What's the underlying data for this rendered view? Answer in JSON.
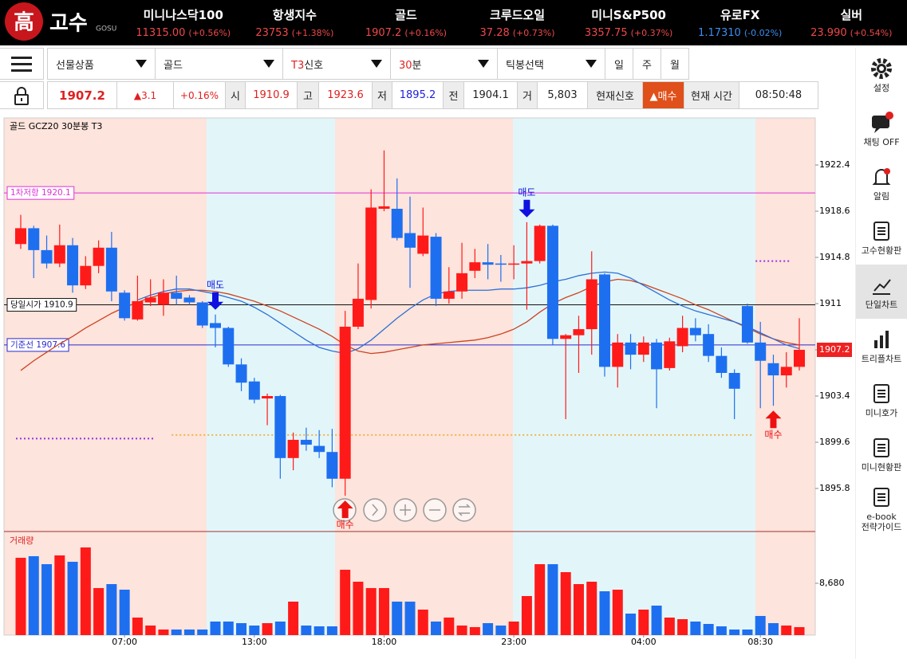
{
  "header": {
    "logo_mark": "高",
    "logo_text": "고수",
    "logo_sub": "GOSU",
    "tickers": [
      {
        "name": "미니나스닥100",
        "price": "11315.00",
        "change": "(+0.56%)",
        "color": "#f04848"
      },
      {
        "name": "항생지수",
        "price": "23753",
        "change": "(+1.38%)",
        "color": "#f04848"
      },
      {
        "name": "골드",
        "price": "1907.2",
        "change": "(+0.16%)",
        "color": "#f04848"
      },
      {
        "name": "크루드오일",
        "price": "37.28",
        "change": "(+0.73%)",
        "color": "#f04848"
      },
      {
        "name": "미니S&P500",
        "price": "3357.75",
        "change": "(+0.37%)",
        "color": "#f04848"
      },
      {
        "name": "유로FX",
        "price": "1.17310",
        "change": "(-0.02%)",
        "color": "#3c8ef0"
      },
      {
        "name": "실버",
        "price": "23.990",
        "change": "(+0.54%)",
        "color": "#f04848"
      }
    ]
  },
  "toolbar": {
    "dropdowns": [
      {
        "highlight": "",
        "text": "선물상품"
      },
      {
        "highlight": "",
        "text": "골드"
      },
      {
        "highlight": "T3",
        "text": "신호"
      },
      {
        "highlight": "30",
        "text": "분"
      },
      {
        "highlight": "",
        "text": "틱봉선택"
      }
    ],
    "periods": [
      "일",
      "주",
      "월"
    ]
  },
  "quote": {
    "price": "1907.2",
    "change": "▲3.1",
    "rate": "+0.16%",
    "open_label": "시",
    "open": "1910.9",
    "high_label": "고",
    "high": "1923.6",
    "low_label": "저",
    "low": "1895.2",
    "prev_label": "전",
    "prev": "1904.1",
    "vol_label": "거",
    "volume": "5,803",
    "signal_label": "현재신호",
    "signal": "▲매수",
    "time_label": "현재 시간",
    "time": "08:50:48"
  },
  "sidebar": {
    "items": [
      {
        "label": "설정"
      },
      {
        "label": "채팅 OFF"
      },
      {
        "label": "알림"
      },
      {
        "label": "고수현황판"
      },
      {
        "label": "단일차트"
      },
      {
        "label": "트리플차트"
      },
      {
        "label": "미니호가"
      },
      {
        "label": "미니현황판"
      },
      {
        "label": "e-book\n전략가이드"
      }
    ]
  },
  "chart_data": {
    "type": "candlestick",
    "title": "골드  GCZ20  30분봉  T3",
    "up_color": "#ff1a1a",
    "down_color": "#1e6ff0",
    "categories": [
      null,
      null,
      null,
      null,
      null,
      null,
      null,
      null,
      "07:00",
      null,
      null,
      null,
      null,
      null,
      null,
      null,
      null,
      null,
      "13:00",
      null,
      null,
      null,
      null,
      null,
      null,
      null,
      null,
      null,
      "18:00",
      null,
      null,
      null,
      null,
      null,
      null,
      null,
      null,
      null,
      "23:00",
      null,
      null,
      null,
      null,
      null,
      null,
      null,
      null,
      null,
      "04:00",
      null,
      null,
      null,
      null,
      null,
      null,
      null,
      null,
      "08:30",
      null,
      null,
      null
    ],
    "open": [
      1915.9,
      1917.2,
      1915.4,
      1914.3,
      1915.8,
      1912.5,
      1914.1,
      1915.6,
      1911.9,
      1909.7,
      1911.1,
      1910.9,
      1911.9,
      1911.5,
      1911.1,
      1909.4,
      1909.0,
      1906.0,
      1904.6,
      1903.2,
      1903.4,
      1898.3,
      1899.8,
      1899.3,
      1898.8,
      1896.6,
      1909.1,
      1911.3,
      1918.8,
      1918.8,
      1916.8,
      1915.1,
      1916.5,
      1911.4,
      1912.0,
      1913.7,
      1914.4,
      1914.3,
      1914.2,
      1914.3,
      1914.5,
      1917.4,
      1908.1,
      1908.4,
      1908.9,
      1913.4,
      1905.8,
      1907.8,
      1906.8,
      1907.8,
      1905.7,
      1907.5,
      1909.0,
      1908.5,
      1906.7,
      1905.3,
      1910.8,
      1907.8,
      1906.1,
      1905.1,
      1905.8
    ],
    "high": [
      1918.3,
      1917.4,
      1916.6,
      1917.5,
      1916.4,
      1914.9,
      1916.2,
      1916.9,
      1912.1,
      1913.3,
      1913.0,
      1913.0,
      1913.3,
      1911.7,
      1911.2,
      1910.1,
      1909.1,
      1906.5,
      1904.9,
      1903.6,
      1903.5,
      1900.4,
      1900.8,
      1900.6,
      1900.7,
      1910.4,
      1914.3,
      1920.4,
      1923.6,
      1921.3,
      1919.8,
      1918.9,
      1916.8,
      1914.0,
      1916.0,
      1915.5,
      1915.9,
      1915.0,
      1915.8,
      1917.7,
      1917.5,
      1917.5,
      1908.5,
      1910.0,
      1915.3,
      1913.5,
      1908.5,
      1908.5,
      1908.3,
      1908.1,
      1908.2,
      1910.0,
      1909.8,
      1909.3,
      1907.4,
      1905.6,
      1911.0,
      1909.5,
      1906.8,
      1907.0,
      1909.8
    ],
    "low": [
      1915.5,
      1913.1,
      1913.9,
      1914.0,
      1911.9,
      1912.2,
      1913.5,
      1911.2,
      1909.6,
      1909.6,
      1910.8,
      1910.0,
      1910.9,
      1910.9,
      1909.0,
      1907.4,
      1905.8,
      1903.8,
      1902.8,
      1901.0,
      1896.6,
      1897.3,
      1898.9,
      1898.3,
      1895.9,
      1895.2,
      1908.9,
      1910.6,
      1918.6,
      1916.2,
      1912.3,
      1914.9,
      1910.8,
      1911.0,
      1911.4,
      1913.1,
      1913.0,
      1912.8,
      1913.0,
      1910.5,
      1914.3,
      1907.6,
      1901.5,
      1905.3,
      1906.8,
      1905.0,
      1904.1,
      1905.6,
      1906.2,
      1902.4,
      1905.5,
      1907.0,
      1907.9,
      1906.2,
      1904.9,
      1901.5,
      1907.7,
      1902.4,
      1902.6,
      1904.1,
      1905.5
    ],
    "close": [
      1917.2,
      1915.4,
      1914.3,
      1915.8,
      1912.5,
      1914.1,
      1915.6,
      1912.0,
      1909.8,
      1911.2,
      1911.5,
      1911.9,
      1911.4,
      1911.1,
      1909.2,
      1909.0,
      1906.0,
      1904.5,
      1903.1,
      1903.4,
      1898.3,
      1899.8,
      1899.4,
      1898.8,
      1896.6,
      1909.1,
      1911.4,
      1918.9,
      1919.0,
      1916.4,
      1915.6,
      1916.6,
      1911.4,
      1912.0,
      1913.5,
      1914.4,
      1914.2,
      1914.2,
      1914.3,
      1914.5,
      1917.4,
      1908.1,
      1908.4,
      1908.9,
      1913.0,
      1905.8,
      1907.8,
      1906.8,
      1907.8,
      1905.6,
      1907.9,
      1909.0,
      1908.4,
      1906.7,
      1905.3,
      1904.0,
      1907.8,
      1906.3,
      1905.1,
      1905.8,
      1907.2
    ],
    "ylim": [
      1892.26,
      1926.27
    ],
    "yticks": [
      1922.4,
      1918.6,
      1914.8,
      1911.0,
      1907.2,
      1903.4,
      1899.6,
      1895.8
    ],
    "last_price": 1907.2,
    "last_price_color": "#ee2222",
    "series": [
      {
        "color": "#cc4422",
        "values": [
          1905.5,
          1906.3,
          1907.0,
          1907.7,
          1908.3,
          1909.0,
          1909.6,
          1910.2,
          1910.7,
          1911.1,
          1911.5,
          1911.8,
          1912.0,
          1912.1,
          1912.1,
          1912.0,
          1911.8,
          1911.5,
          1911.2,
          1910.8,
          1910.4,
          1909.9,
          1909.4,
          1908.9,
          1908.3,
          1907.6,
          1907.1,
          1906.9,
          1907.0,
          1907.2,
          1907.4,
          1907.6,
          1907.7,
          1907.8,
          1907.9,
          1908.0,
          1908.2,
          1908.5,
          1908.9,
          1909.5,
          1910.3,
          1911.0,
          1911.5,
          1911.9,
          1912.4,
          1912.8,
          1913.0,
          1912.9,
          1912.6,
          1912.2,
          1911.8,
          1911.4,
          1910.9,
          1910.5,
          1910.0,
          1909.5,
          1909.0,
          1908.5,
          1908.1,
          1907.8,
          1907.6
        ]
      },
      {
        "color": "#2f6fd6",
        "values": [
          null,
          null,
          null,
          null,
          null,
          null,
          null,
          null,
          null,
          1911.3,
          1911.7,
          1912.0,
          1912.2,
          1912.2,
          1912.0,
          1911.8,
          1911.5,
          1911.2,
          1910.7,
          1910.1,
          1909.4,
          1908.7,
          1908.0,
          1907.4,
          1907.1,
          1906.9,
          1907.3,
          1908.0,
          1908.9,
          1909.8,
          1910.6,
          1911.3,
          1911.8,
          1912.0,
          1912.1,
          1912.1,
          1912.1,
          1912.2,
          1912.2,
          1912.3,
          1912.5,
          1912.8,
          1913.0,
          1913.3,
          1913.5,
          1913.6,
          1913.5,
          1913.1,
          1912.5,
          1911.9,
          1911.3,
          1910.8,
          1910.4,
          1910.1,
          1909.8,
          1909.5,
          1909.1,
          1908.6,
          1908.1,
          1907.6,
          1907.3
        ]
      }
    ],
    "levels": [
      {
        "label": "1차저항 1920.1",
        "value": 1920.1,
        "color": "#e030d8"
      },
      {
        "label": "당일시가 1910.9",
        "value": 1910.9,
        "color": "#111111"
      },
      {
        "label": "기준선 1907.6",
        "value": 1907.6,
        "color": "#2828d0"
      }
    ],
    "dotted": [
      {
        "value": 1899.9,
        "color": "#9a30e8",
        "from": 0,
        "to": 10
      },
      {
        "value": 1900.2,
        "color": "#f2b44a",
        "from": 12,
        "to": 56
      },
      {
        "value": 1914.5,
        "color": "#9a30e8",
        "from": 57,
        "to": 59
      }
    ],
    "signals": [
      {
        "label": "매도",
        "index": 15,
        "side": "sell",
        "color": "#1010e0"
      },
      {
        "label": "매도",
        "index": 39,
        "side": "sell",
        "color": "#1010e0"
      },
      {
        "label": "매수",
        "index": 25,
        "side": "buy",
        "color": "#ee1111"
      },
      {
        "label": "매수",
        "index": 58,
        "side": "buy",
        "color": "#ee1111"
      }
    ],
    "volume": {
      "title": "거래량",
      "values": [
        12950,
        13217,
        11882,
        13350,
        12282,
        14685,
        7877,
        8544,
        7610,
        2937,
        1602,
        935,
        935,
        935,
        935,
        2270,
        2270,
        2003,
        1602,
        2003,
        2270,
        5607,
        1602,
        1469,
        1469,
        10947,
        8945,
        7877,
        7877,
        5607,
        5607,
        4272,
        2270,
        2937,
        1602,
        1335,
        2003,
        1602,
        2270,
        6542,
        11882,
        11882,
        10547,
        8544,
        8945,
        7343,
        7610,
        3605,
        4272,
        4940,
        2937,
        2670,
        2270,
        1869,
        1469,
        935,
        935,
        3204,
        2003,
        1602,
        1335
      ],
      "ylim": [
        0,
        17355
      ],
      "yticks": [
        {
          "value": 8680,
          "label": "8,680"
        }
      ]
    }
  }
}
